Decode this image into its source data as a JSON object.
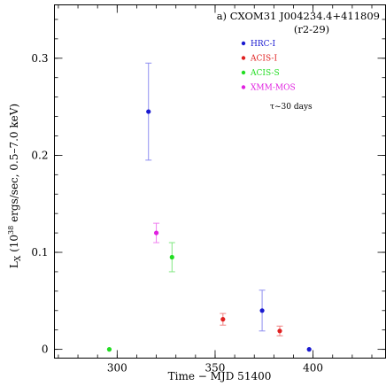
{
  "chart_data": {
    "type": "scatter",
    "title_line1": "a) CXOM31 J004234.4+411809",
    "title_line2": "(r2-29)",
    "xlabel": "Time − MJD 51400",
    "ylabel_main": "L",
    "ylabel_sub": "X",
    "ylabel_paren": "(10",
    "ylabel_exp": "38",
    "ylabel_rest": " ergs/sec, 0.5–7.0 keV)",
    "xlim": [
      268,
      437
    ],
    "ylim": [
      -0.009,
      0.355
    ],
    "xticks": [
      300,
      350,
      400
    ],
    "xtick_labels": [
      "300",
      "350",
      "400"
    ],
    "yticks": [
      0,
      0.1,
      0.2,
      0.3
    ],
    "ytick_labels": [
      "0",
      "0.1",
      "0.2",
      "0.3"
    ],
    "x_minor_step": 10,
    "y_minor_step": 0.02,
    "legend_position": "top-right",
    "annotation": "τ~30 days",
    "series": [
      {
        "name": "HRC-I",
        "color": "#1a1ad0",
        "err_color": "#8f8ff0",
        "points": [
          {
            "x": 316,
            "y": 0.245,
            "lo": 0.195,
            "hi": 0.295
          },
          {
            "x": 374,
            "y": 0.04,
            "lo": 0.019,
            "hi": 0.061
          },
          {
            "x": 398,
            "y": 0.0,
            "lo": 0.0,
            "hi": 0.0
          }
        ]
      },
      {
        "name": "ACIS-I",
        "color": "#e02020",
        "err_color": "#f08080",
        "points": [
          {
            "x": 354,
            "y": 0.031,
            "lo": 0.025,
            "hi": 0.037
          },
          {
            "x": 383,
            "y": 0.019,
            "lo": 0.014,
            "hi": 0.024
          }
        ]
      },
      {
        "name": "ACIS-S",
        "color": "#22dd22",
        "err_color": "#80e880",
        "points": [
          {
            "x": 296,
            "y": 0.0,
            "lo": 0.0,
            "hi": 0.0
          },
          {
            "x": 328,
            "y": 0.095,
            "lo": 0.08,
            "hi": 0.11
          }
        ]
      },
      {
        "name": "XMM-MOS",
        "color": "#e020e0",
        "err_color": "#f080f0",
        "points": [
          {
            "x": 320,
            "y": 0.12,
            "lo": 0.11,
            "hi": 0.13
          }
        ]
      }
    ]
  }
}
